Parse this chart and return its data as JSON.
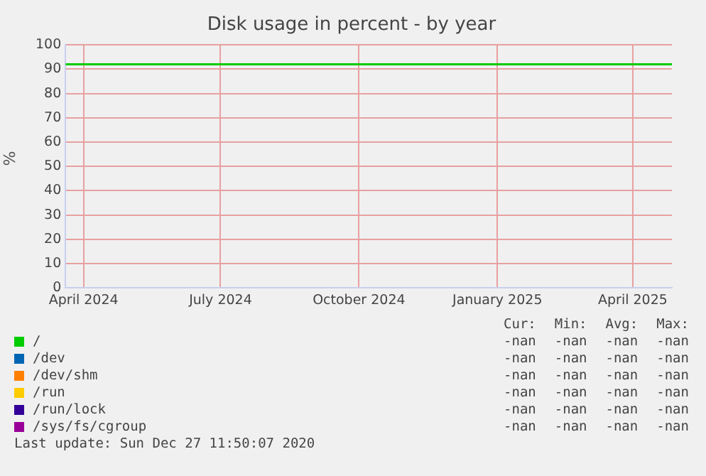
{
  "chart_data": {
    "type": "line",
    "title": "Disk usage in percent - by year",
    "ylabel": "%",
    "x": [
      "2024-03-20",
      "2025-04-27"
    ],
    "series": [
      {
        "name": "/",
        "color": "#00cc00",
        "values": [
          92,
          92
        ]
      },
      {
        "name": "/dev",
        "color": "#0066b3",
        "values": [
          null,
          null
        ]
      },
      {
        "name": "/dev/shm",
        "color": "#ff8000",
        "values": [
          null,
          null
        ]
      },
      {
        "name": "/run",
        "color": "#ffcc00",
        "values": [
          null,
          null
        ]
      },
      {
        "name": "/run/lock",
        "color": "#330099",
        "values": [
          null,
          null
        ]
      },
      {
        "name": "/sys/fs/cgroup",
        "color": "#990099",
        "values": [
          null,
          null
        ]
      }
    ],
    "xlim": [
      "2024-03-20",
      "2025-04-27"
    ],
    "xticks": [
      {
        "value": "2024-04-01",
        "label": "April 2024"
      },
      {
        "value": "2024-07-01",
        "label": "July 2024"
      },
      {
        "value": "2024-10-01",
        "label": "October 2024"
      },
      {
        "value": "2025-01-01",
        "label": "January 2025"
      },
      {
        "value": "2025-04-01",
        "label": "April 2025"
      }
    ],
    "ylim": [
      0,
      100
    ],
    "yticks": [
      0,
      10,
      20,
      30,
      40,
      50,
      60,
      70,
      80,
      90,
      100
    ],
    "grid": true,
    "legend": "bottom",
    "marker": "none",
    "line_style": "solid",
    "annotations": [
      "Cur:",
      "Min:",
      "Avg:",
      "Max:",
      "-nan",
      "-nan",
      "-nan",
      "-nan",
      "-nan",
      "-nan",
      "-nan",
      "-nan",
      "-nan",
      "-nan",
      "-nan",
      "-nan",
      "-nan",
      "-nan",
      "-nan",
      "-nan",
      "-nan",
      "-nan",
      "-nan",
      "-nan",
      "-nan",
      "-nan",
      "-nan",
      "-nan",
      "Last update: Sun Dec 27 11:50:07 2020"
    ]
  }
}
